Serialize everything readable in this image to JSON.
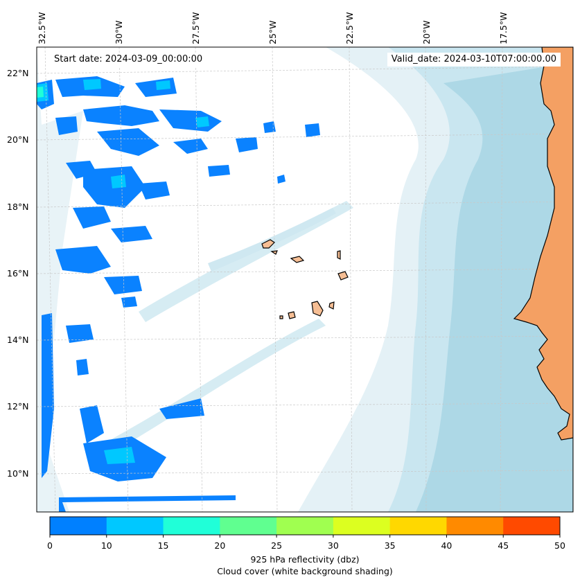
{
  "map": {
    "start_date_label": "Start date: 2024-03-09_00:00:00",
    "valid_date_label": "Valid_date: 2024-03-10T07:00:00.00",
    "lon_ticks": [
      "32.5°W",
      "30°W",
      "27.5°W",
      "25°W",
      "22.5°W",
      "20°W",
      "17.5°W"
    ],
    "lat_ticks": [
      "22°N",
      "20°N",
      "18°N",
      "16°N",
      "14°N",
      "12°N",
      "10°N"
    ],
    "colors": {
      "land": "#f4a063",
      "cloud_light": "#e4f1f6",
      "cloud_medium": "#b5dcea",
      "cloud_dense": "#a8d6e6",
      "grid": "#c8c8c8"
    }
  },
  "colorbar": {
    "bounds": [
      "0",
      "10",
      "15",
      "20",
      "25",
      "30",
      "35",
      "40",
      "45",
      "50"
    ],
    "colors": [
      "#0080ff",
      "#00c8ff",
      "#20ffd8",
      "#60ff90",
      "#a0ff50",
      "#dcff20",
      "#ffd800",
      "#ff8a00",
      "#ff4a00"
    ],
    "label_line1": "925 hPa reflectivity (dbz)",
    "label_line2": "Cloud cover (white background shading)"
  }
}
